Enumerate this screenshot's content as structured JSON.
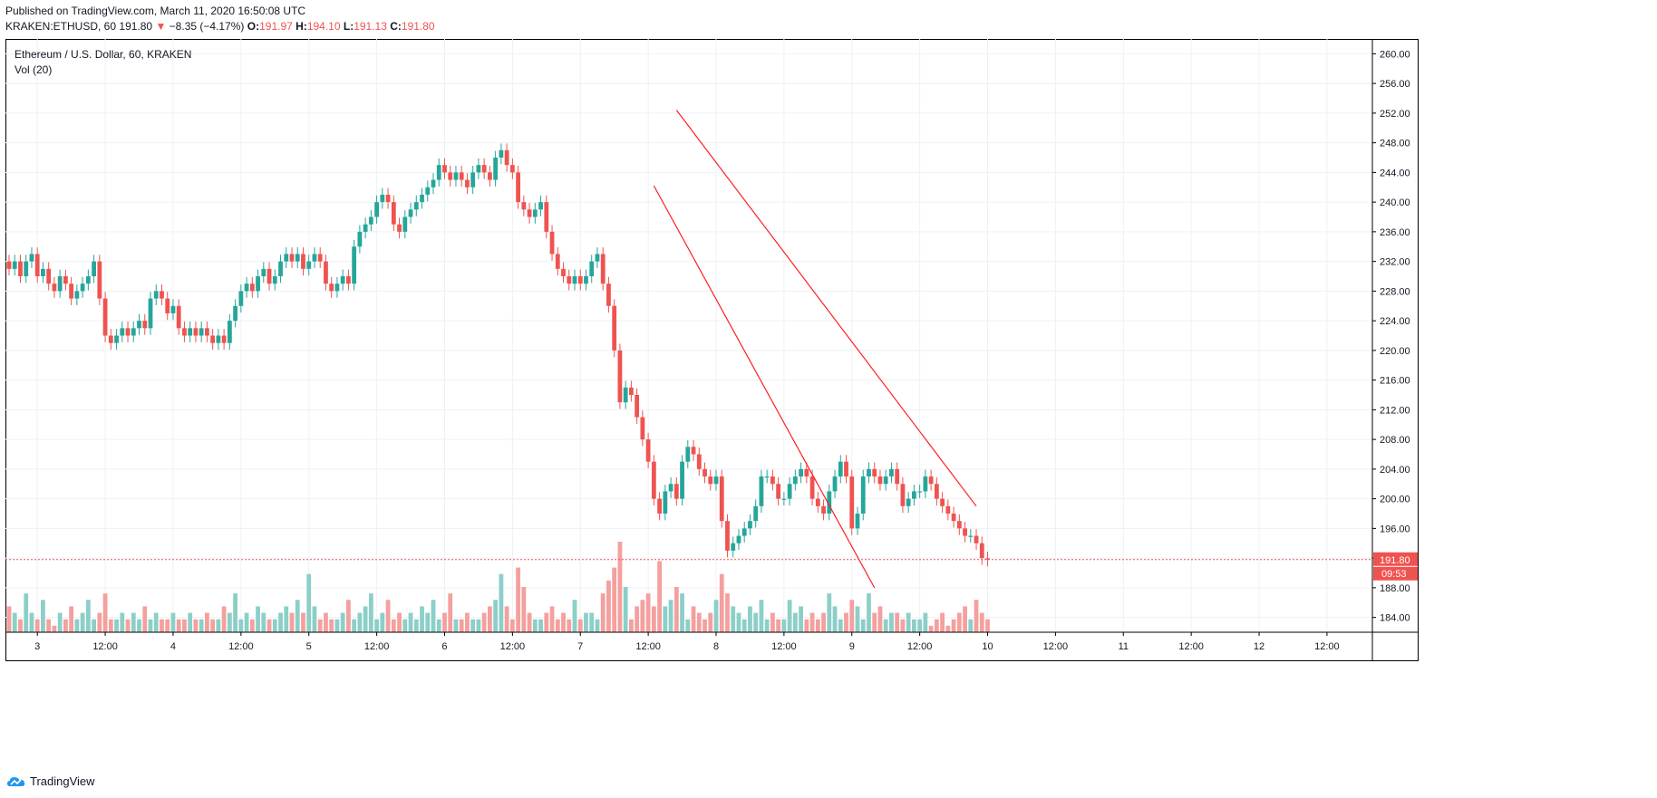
{
  "header": {
    "published_line": "Published on TradingView.com, March 11, 2020 16:50:08 UTC",
    "symbol": "KRAKEN:ETHUSD, 60",
    "last": "191.80",
    "arrow": "▼",
    "change": "−8.35 (−4.17%)",
    "o_label": "O:",
    "o_val": "191.97",
    "h_label": "H:",
    "h_val": "194.10",
    "l_label": "L:",
    "l_val": "191.13",
    "c_label": "C:",
    "c_val": "191.80"
  },
  "legend": {
    "title": "Ethereum / U.S. Dollar, 60, KRAKEN",
    "vol": "Vol (20)"
  },
  "price_tag": "191.80",
  "countdown": "09:53",
  "footer": {
    "brand": "TradingView"
  },
  "colors": {
    "up": "#26a69a",
    "down": "#ef5350",
    "up_vol": "#8ccfc8",
    "down_vol": "#f4a09e",
    "line": "#ff1f1f"
  },
  "chart_data": {
    "type": "candlestick",
    "title": "Ethereum / U.S. Dollar, 60, KRAKEN",
    "ylim": [
      182,
      262
    ],
    "y_ticks": [
      "260.00",
      "256.00",
      "252.00",
      "248.00",
      "244.00",
      "240.00",
      "236.00",
      "232.00",
      "228.00",
      "224.00",
      "220.00",
      "216.00",
      "212.00",
      "208.00",
      "204.00",
      "200.00",
      "196.00",
      "192.00",
      "188.00",
      "184.00"
    ],
    "x_ticks": [
      {
        "label": "3",
        "t": 5
      },
      {
        "label": "12:00",
        "t": 17
      },
      {
        "label": "4",
        "t": 29
      },
      {
        "label": "12:00",
        "t": 41
      },
      {
        "label": "5",
        "t": 53
      },
      {
        "label": "12:00",
        "t": 65
      },
      {
        "label": "6",
        "t": 77
      },
      {
        "label": "12:00",
        "t": 89
      },
      {
        "label": "7",
        "t": 101
      },
      {
        "label": "12:00",
        "t": 113
      },
      {
        "label": "8",
        "t": 125
      },
      {
        "label": "12:00",
        "t": 137
      },
      {
        "label": "9",
        "t": 149
      },
      {
        "label": "12:00",
        "t": 161
      },
      {
        "label": "10",
        "t": 173
      },
      {
        "label": "12:00",
        "t": 185
      },
      {
        "label": "11",
        "t": 197
      },
      {
        "label": "12:00",
        "t": 209
      },
      {
        "label": "12",
        "t": 221
      },
      {
        "label": "12:00",
        "t": 233
      }
    ],
    "close": [
      231,
      232,
      230,
      232,
      233,
      230,
      231,
      229,
      228,
      230,
      229,
      227,
      228,
      229,
      230,
      232,
      227,
      222,
      221,
      222,
      223,
      222,
      223,
      224,
      223,
      227,
      228,
      227,
      225,
      226,
      223,
      222,
      223,
      222,
      223,
      222,
      221,
      222,
      221,
      224,
      226,
      228,
      229,
      228,
      230,
      231,
      229,
      230,
      232,
      233,
      232,
      233,
      231,
      232,
      233,
      232,
      229,
      228,
      229,
      230,
      229,
      234,
      236,
      237,
      238,
      240,
      241,
      240,
      237,
      236,
      238,
      239,
      240,
      241,
      242,
      243,
      245,
      244,
      243,
      244,
      243,
      242,
      244,
      245,
      244,
      243,
      246,
      247,
      245,
      244,
      240,
      239,
      238,
      239,
      240,
      236,
      233,
      231,
      230,
      229,
      230,
      229,
      230,
      232,
      233,
      229,
      226,
      220,
      213,
      215,
      214,
      211,
      208,
      205,
      200,
      198,
      201,
      202,
      200,
      205,
      207,
      206,
      204,
      203,
      202,
      203,
      197,
      193,
      194,
      195,
      196,
      197,
      199,
      203,
      203,
      202,
      200,
      200,
      202,
      203,
      204,
      203,
      200,
      199,
      198,
      201,
      203,
      205,
      203,
      196,
      198,
      203,
      204,
      203,
      202,
      203,
      204,
      202,
      199,
      200,
      201,
      201,
      203,
      202,
      200,
      199,
      198,
      197,
      196,
      195,
      195,
      194,
      192,
      191.8
    ],
    "open": [
      232,
      231,
      232,
      230,
      232,
      233,
      230,
      231,
      229,
      228,
      230,
      229,
      227,
      228,
      229,
      230,
      232,
      227,
      222,
      221,
      222,
      223,
      222,
      223,
      224,
      223,
      227,
      228,
      227,
      225,
      226,
      223,
      222,
      223,
      222,
      223,
      222,
      221,
      222,
      221,
      224,
      226,
      228,
      229,
      228,
      230,
      231,
      229,
      230,
      232,
      233,
      232,
      233,
      231,
      232,
      233,
      232,
      229,
      228,
      229,
      230,
      229,
      234,
      236,
      237,
      238,
      240,
      241,
      240,
      237,
      236,
      238,
      239,
      240,
      241,
      242,
      243,
      245,
      244,
      243,
      244,
      243,
      242,
      244,
      245,
      244,
      243,
      246,
      247,
      245,
      244,
      240,
      239,
      238,
      239,
      240,
      236,
      233,
      231,
      230,
      229,
      230,
      229,
      230,
      232,
      233,
      229,
      226,
      220,
      213,
      215,
      214,
      211,
      208,
      205,
      200,
      198,
      201,
      202,
      200,
      205,
      207,
      206,
      204,
      203,
      202,
      203,
      197,
      193,
      194,
      195,
      196,
      197,
      199,
      203,
      203,
      202,
      200,
      200,
      202,
      203,
      204,
      203,
      200,
      199,
      198,
      201,
      203,
      205,
      203,
      196,
      198,
      203,
      204,
      203,
      202,
      203,
      204,
      202,
      199,
      200,
      201,
      201,
      203,
      202,
      200,
      199,
      198,
      197,
      196,
      195,
      195,
      194,
      191.97
    ],
    "volume": [
      4,
      3,
      2,
      6,
      3,
      2,
      5,
      2,
      1,
      3,
      2,
      4,
      2,
      3,
      5,
      2,
      3,
      6,
      2,
      2,
      3,
      2,
      3,
      2,
      4,
      2,
      3,
      2,
      2,
      3,
      2,
      2,
      3,
      2,
      2,
      3,
      2,
      2,
      4,
      3,
      6,
      2,
      3,
      2,
      4,
      3,
      2,
      2,
      3,
      4,
      3,
      5,
      3,
      9,
      4,
      2,
      3,
      2,
      2,
      3,
      5,
      2,
      3,
      4,
      6,
      2,
      3,
      5,
      2,
      3,
      2,
      3,
      2,
      4,
      3,
      5,
      2,
      3,
      6,
      2,
      2,
      3,
      2,
      2,
      3,
      4,
      5,
      9,
      4,
      2,
      10,
      7,
      3,
      2,
      2,
      3,
      4,
      2,
      3,
      2,
      5,
      2,
      3,
      3,
      2,
      6,
      8,
      10,
      14,
      7,
      2,
      4,
      5,
      6,
      4,
      11,
      4,
      5,
      7,
      6,
      2,
      4,
      3,
      2,
      3,
      5,
      9,
      6,
      4,
      3,
      2,
      4,
      3,
      5,
      2,
      3,
      2,
      2,
      5,
      3,
      4,
      2,
      3,
      2,
      3,
      6,
      4,
      2,
      3,
      5,
      4,
      2,
      6,
      3,
      4,
      2,
      3,
      3,
      2,
      3,
      2,
      2,
      3,
      1,
      2,
      3,
      1,
      2,
      3,
      4,
      2,
      5,
      3,
      2
    ]
  }
}
